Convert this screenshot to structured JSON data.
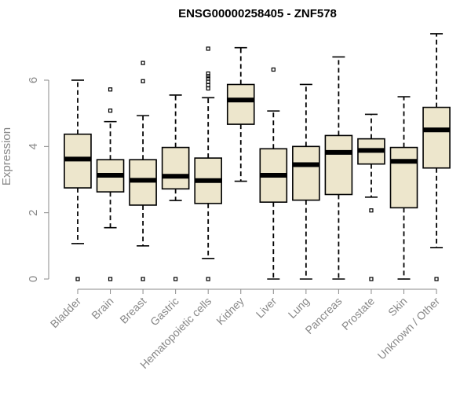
{
  "chart_data": {
    "type": "boxplot",
    "title": "ENSG00000258405 - ZNF578",
    "xlabel": "",
    "ylabel": "Expression",
    "ylim": [
      0,
      7.4
    ],
    "yticks": [
      0,
      2,
      4,
      6
    ],
    "box_color": "#ede6cc",
    "categories": [
      "Bladder",
      "Brain",
      "Breast",
      "Gastric",
      "Hematopoietic cells",
      "Kidney",
      "Liver",
      "Lung",
      "Pancreas",
      "Prostate",
      "Skin",
      "Unknown / Other"
    ],
    "boxes": [
      {
        "name": "Bladder",
        "whislo": 1.07,
        "q1": 2.75,
        "med": 3.62,
        "q3": 4.37,
        "whishi": 6.0,
        "outliers": [
          0.0
        ]
      },
      {
        "name": "Brain",
        "whislo": 1.55,
        "q1": 2.63,
        "med": 3.13,
        "q3": 3.6,
        "whishi": 4.75,
        "outliers": [
          0.0,
          5.08,
          5.72
        ]
      },
      {
        "name": "Breast",
        "whislo": 1.0,
        "q1": 2.23,
        "med": 2.98,
        "q3": 3.6,
        "whishi": 4.93,
        "outliers": [
          0.0,
          5.97,
          6.52
        ]
      },
      {
        "name": "Gastric",
        "whislo": 2.37,
        "q1": 2.72,
        "med": 3.1,
        "q3": 3.97,
        "whishi": 5.55,
        "outliers": [
          0.0
        ]
      },
      {
        "name": "Hematopoietic cells",
        "whislo": 0.62,
        "q1": 2.28,
        "med": 2.97,
        "q3": 3.65,
        "whishi": 5.47,
        "outliers": [
          0.0,
          5.75,
          5.85,
          5.95,
          6.05,
          6.12,
          6.2,
          6.95
        ]
      },
      {
        "name": "Kidney",
        "whislo": 2.95,
        "q1": 4.67,
        "med": 5.4,
        "q3": 5.87,
        "whishi": 6.98,
        "outliers": []
      },
      {
        "name": "Liver",
        "whislo": 0.0,
        "q1": 2.32,
        "med": 3.13,
        "q3": 3.93,
        "whishi": 5.07,
        "outliers": [
          6.32
        ]
      },
      {
        "name": "Lung",
        "whislo": 0.0,
        "q1": 2.38,
        "med": 3.45,
        "q3": 4.0,
        "whishi": 5.87,
        "outliers": []
      },
      {
        "name": "Pancreas",
        "whislo": 0.0,
        "q1": 2.55,
        "med": 3.82,
        "q3": 4.33,
        "whishi": 6.7,
        "outliers": []
      },
      {
        "name": "Prostate",
        "whislo": 2.47,
        "q1": 3.47,
        "med": 3.88,
        "q3": 4.23,
        "whishi": 4.97,
        "outliers": [
          0.0,
          2.07
        ]
      },
      {
        "name": "Skin",
        "whislo": 0.0,
        "q1": 2.15,
        "med": 3.55,
        "q3": 3.97,
        "whishi": 5.5,
        "outliers": []
      },
      {
        "name": "Unknown / Other",
        "whislo": 0.95,
        "q1": 3.35,
        "med": 4.5,
        "q3": 5.18,
        "whishi": 7.4,
        "outliers": [
          0.0
        ]
      }
    ]
  }
}
